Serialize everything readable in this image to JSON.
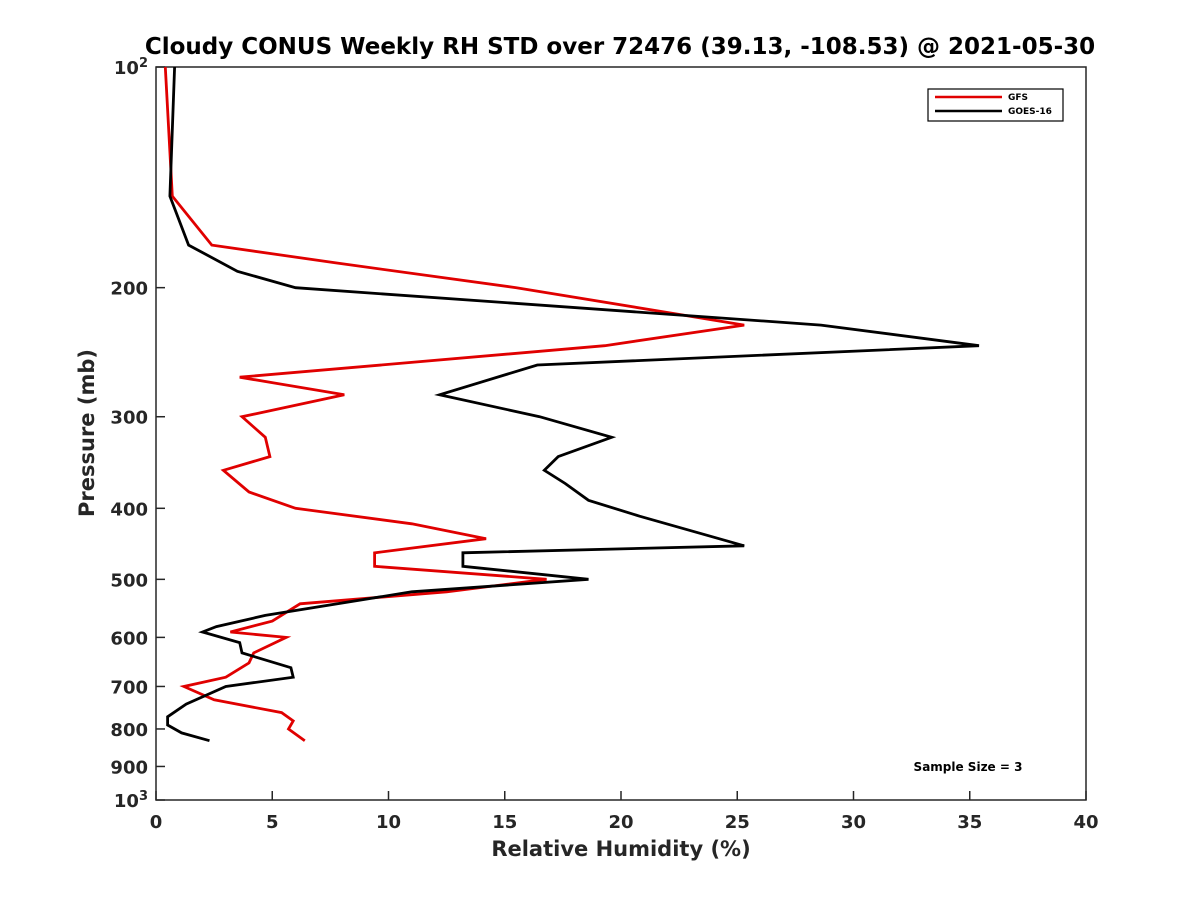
{
  "chart_data": {
    "type": "line",
    "title": "Cloudy CONUS Weekly RH STD over 72476 (39.13, -108.53) @ 2021-05-30",
    "xlabel": "Relative Humidity (%)",
    "ylabel": "Pressure (mb)",
    "xlim": [
      0,
      40
    ],
    "ylim": [
      100,
      1000
    ],
    "yscale": "log",
    "y_reversed": true,
    "x_ticks": [
      0,
      5,
      10,
      15,
      20,
      25,
      30,
      35,
      40
    ],
    "x_tick_labels": [
      "0",
      "5",
      "10",
      "15",
      "20",
      "25",
      "30",
      "35",
      "40"
    ],
    "y_ticks": [
      100,
      200,
      300,
      400,
      500,
      600,
      700,
      800,
      900,
      1000
    ],
    "y_tick_labels": [
      {
        "base": "10",
        "exp": "2"
      },
      {
        "base": "200"
      },
      {
        "base": "300"
      },
      {
        "base": "400"
      },
      {
        "base": "500"
      },
      {
        "base": "600"
      },
      {
        "base": "700"
      },
      {
        "base": "800"
      },
      {
        "base": "900"
      },
      {
        "base": "10",
        "exp": "3"
      }
    ],
    "grid": false,
    "legend_position": "top-right",
    "series": [
      {
        "name": "GFS",
        "color": "#e00000",
        "points": [
          [
            0.4,
            100
          ],
          [
            0.7,
            150
          ],
          [
            2.4,
            175
          ],
          [
            7.7,
            185
          ],
          [
            15.5,
            200
          ],
          [
            25.3,
            225
          ],
          [
            19.3,
            240
          ],
          [
            3.6,
            265
          ],
          [
            8.1,
            280
          ],
          [
            3.7,
            300
          ],
          [
            4.7,
            320
          ],
          [
            4.9,
            340
          ],
          [
            2.9,
            355
          ],
          [
            4.0,
            380
          ],
          [
            6.0,
            400
          ],
          [
            11.0,
            420
          ],
          [
            14.2,
            440
          ],
          [
            9.4,
            460
          ],
          [
            9.4,
            480
          ],
          [
            16.8,
            500
          ],
          [
            12.5,
            520
          ],
          [
            6.2,
            540
          ],
          [
            5.0,
            570
          ],
          [
            3.2,
            590
          ],
          [
            5.6,
            600
          ],
          [
            4.2,
            630
          ],
          [
            4.0,
            650
          ],
          [
            3.0,
            680
          ],
          [
            1.2,
            700
          ],
          [
            2.5,
            730
          ],
          [
            5.4,
            760
          ],
          [
            5.9,
            780
          ],
          [
            5.7,
            800
          ],
          [
            6.4,
            830
          ]
        ]
      },
      {
        "name": "GOES-16",
        "color": "#000000",
        "points": [
          [
            0.8,
            100
          ],
          [
            0.6,
            150
          ],
          [
            1.4,
            175
          ],
          [
            3.5,
            190
          ],
          [
            6.0,
            200
          ],
          [
            28.6,
            225
          ],
          [
            35.4,
            240
          ],
          [
            16.4,
            255
          ],
          [
            12.2,
            280
          ],
          [
            16.5,
            300
          ],
          [
            19.6,
            320
          ],
          [
            17.3,
            340
          ],
          [
            16.7,
            355
          ],
          [
            17.6,
            370
          ],
          [
            18.6,
            390
          ],
          [
            20.8,
            410
          ],
          [
            25.3,
            450
          ],
          [
            13.2,
            460
          ],
          [
            13.2,
            480
          ],
          [
            18.6,
            500
          ],
          [
            11.0,
            520
          ],
          [
            4.7,
            560
          ],
          [
            2.6,
            580
          ],
          [
            2.0,
            590
          ],
          [
            3.6,
            610
          ],
          [
            3.7,
            630
          ],
          [
            5.8,
            660
          ],
          [
            5.9,
            680
          ],
          [
            3.0,
            700
          ],
          [
            1.3,
            740
          ],
          [
            0.5,
            770
          ],
          [
            0.5,
            790
          ],
          [
            1.1,
            810
          ],
          [
            2.3,
            830
          ]
        ]
      }
    ],
    "annotations": [
      {
        "text": "Sample Size = 3",
        "position": "bottom-right"
      }
    ]
  }
}
